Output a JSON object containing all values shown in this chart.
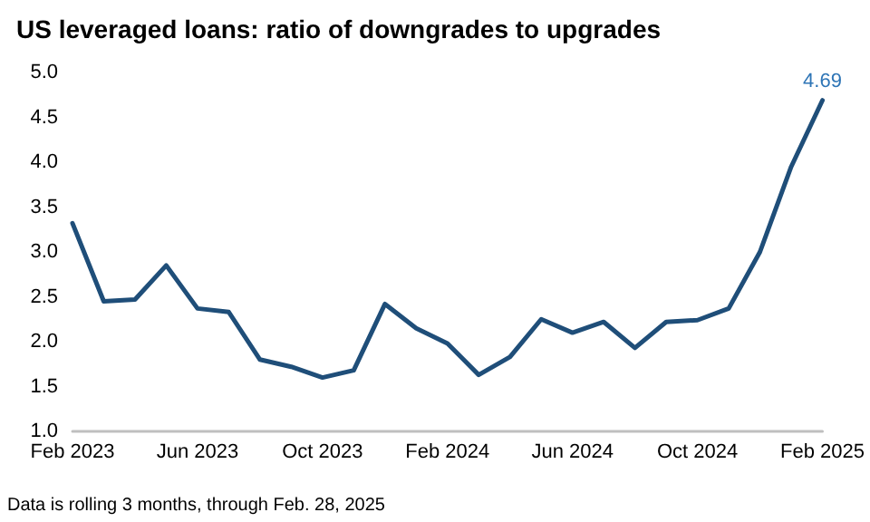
{
  "chart_data": {
    "type": "line",
    "title": "US leveraged loans: ratio of downgrades to upgrades",
    "categories": [
      "Feb 2023",
      null,
      null,
      null,
      "Jun 2023",
      null,
      null,
      null,
      "Oct 2023",
      null,
      null,
      null,
      "Feb 2024",
      null,
      null,
      null,
      "Jun 2024",
      null,
      null,
      null,
      "Oct 2024",
      null,
      null,
      null,
      "Feb 2025"
    ],
    "series": [
      {
        "color": "#1f4e79",
        "values": [
          3.32,
          2.45,
          2.47,
          2.85,
          2.37,
          2.33,
          1.8,
          1.72,
          1.6,
          1.68,
          2.42,
          2.15,
          1.98,
          1.63,
          1.83,
          2.25,
          2.1,
          2.22,
          1.93,
          2.22,
          2.24,
          2.37,
          3.0,
          3.95,
          4.69
        ],
        "value_labels": [
          null,
          null,
          null,
          null,
          null,
          null,
          null,
          null,
          null,
          null,
          null,
          null,
          null,
          null,
          null,
          null,
          null,
          null,
          null,
          null,
          null,
          null,
          null,
          null,
          "4.69"
        ]
      }
    ],
    "ylim": [
      1.0,
      5.0
    ],
    "yticks": [
      {
        "value": 1,
        "label": "1.0"
      },
      {
        "value": 1.5,
        "label": "1.5"
      },
      {
        "value": 2,
        "label": "2.0"
      },
      {
        "value": 2.5,
        "label": "2.5"
      },
      {
        "value": 3,
        "label": "3.0"
      },
      {
        "value": 3.5,
        "label": "3.5"
      },
      {
        "value": 4,
        "label": "4.0"
      },
      {
        "value": 4.5,
        "label": "4.5"
      },
      {
        "value": 5,
        "label": "5.0"
      }
    ],
    "grid": false,
    "marker": "none",
    "line_style": "solid",
    "annotations": [
      "Data is rolling 3 months, through Feb. 28, 2025"
    ]
  }
}
